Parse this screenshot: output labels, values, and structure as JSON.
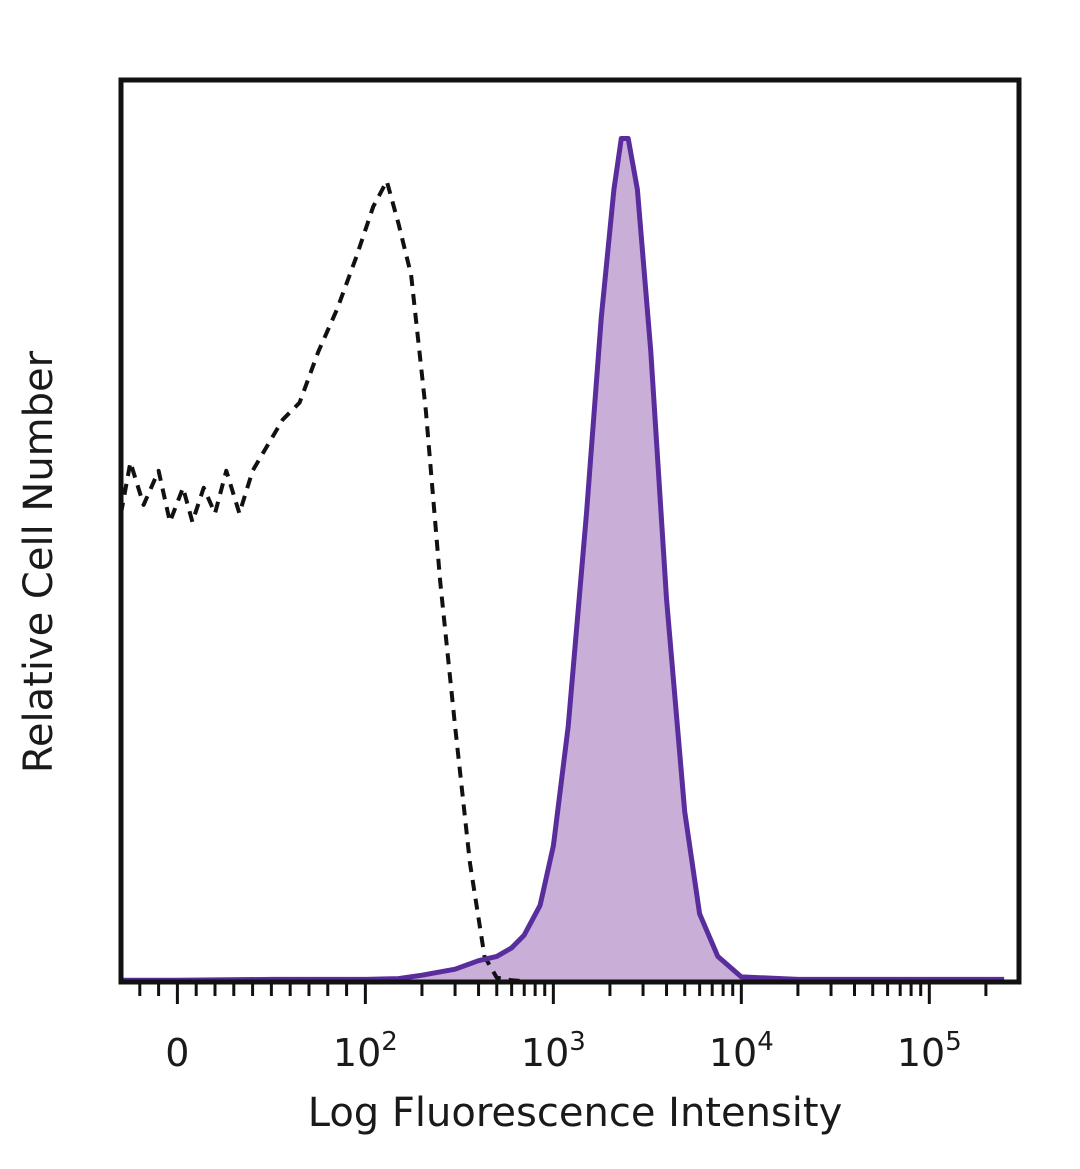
{
  "chart_data": {
    "type": "area",
    "title": "",
    "xlabel": "Log Fluorescence Intensity",
    "ylabel": "Relative Cell Number",
    "x_scale": "biexponential",
    "xlim": [
      -30,
      300000
    ],
    "ylim": [
      0,
      100
    ],
    "grid": false,
    "legend": "none",
    "x_ticks": [
      {
        "value": 0,
        "base": "0",
        "exp": ""
      },
      {
        "value": 100,
        "base": "10",
        "exp": "2"
      },
      {
        "value": 1000,
        "base": "10",
        "exp": "3"
      },
      {
        "value": 10000,
        "base": "10",
        "exp": "4"
      },
      {
        "value": 100000,
        "base": "10",
        "exp": "5"
      }
    ],
    "series": [
      {
        "style": "dashed",
        "color": "#111111",
        "fill": "none",
        "x": [
          -30,
          -25,
          -18,
          -10,
          -4,
          3,
          8,
          14,
          20,
          26,
          33,
          40,
          48,
          56,
          65,
          75,
          85,
          95,
          110,
          130,
          150,
          175,
          210,
          250,
          300,
          360,
          430,
          500,
          600,
          800
        ],
        "y": [
          55,
          61,
          56,
          60,
          54,
          58,
          54,
          58,
          55,
          60,
          55,
          60,
          63,
          66,
          68,
          74,
          79,
          85,
          91,
          94,
          89,
          83,
          67,
          47,
          30,
          14,
          3,
          0.5,
          0.2,
          0
        ]
      },
      {
        "style": "solid",
        "color": "#5a2d9c",
        "fill": "#c9aed7",
        "x": [
          -30,
          0,
          50,
          100,
          150,
          200,
          300,
          400,
          500,
          600,
          700,
          850,
          1000,
          1200,
          1500,
          1800,
          2100,
          2300,
          2500,
          2800,
          3300,
          4000,
          5000,
          6000,
          7500,
          10000,
          20000,
          50000,
          100000,
          250000
        ],
        "y": [
          0.2,
          0.2,
          0.3,
          0.3,
          0.4,
          0.8,
          1.5,
          2.5,
          3,
          4,
          5.5,
          9,
          16,
          30,
          55,
          78,
          93,
          99,
          99,
          93,
          74,
          45,
          20,
          8,
          3,
          0.6,
          0.3,
          0.3,
          0.3,
          0.3
        ]
      }
    ]
  }
}
